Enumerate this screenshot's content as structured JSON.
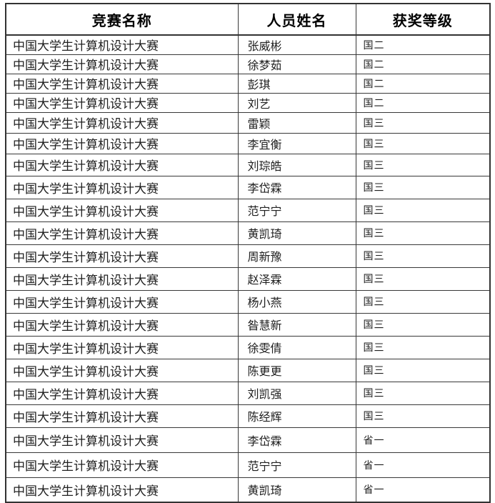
{
  "table": {
    "headers": [
      "竞赛名称",
      "人员姓名",
      "获奖等级"
    ],
    "rows": [
      {
        "competition": "中国大学生计算机设计大赛",
        "name": "张威彬",
        "award": "国二"
      },
      {
        "competition": "中国大学生计算机设计大赛",
        "name": "徐梦茹",
        "award": "国二"
      },
      {
        "competition": "中国大学生计算机设计大赛",
        "name": "彭琪",
        "award": "国二"
      },
      {
        "competition": "中国大学生计算机设计大赛",
        "name": "刘艺",
        "award": "国二"
      },
      {
        "competition": "中国大学生计算机设计大赛",
        "name": "雷颖",
        "award": "国三"
      },
      {
        "competition": "中国大学生计算机设计大赛",
        "name": "李宜衡",
        "award": "国三"
      },
      {
        "competition": "中国大学生计算机设计大赛",
        "name": "刘琮皓",
        "award": "国三"
      },
      {
        "competition": "中国大学生计算机设计大赛",
        "name": "李岱霖",
        "award": "国三"
      },
      {
        "competition": "中国大学生计算机设计大赛",
        "name": "范宁宁",
        "award": "国三"
      },
      {
        "competition": "中国大学生计算机设计大赛",
        "name": "黄凯琦",
        "award": "国三"
      },
      {
        "competition": "中国大学生计算机设计大赛",
        "name": "周新豫",
        "award": "国三"
      },
      {
        "competition": "中国大学生计算机设计大赛",
        "name": "赵泽霖",
        "award": "国三"
      },
      {
        "competition": "中国大学生计算机设计大赛",
        "name": "杨小燕",
        "award": "国三"
      },
      {
        "competition": "中国大学生计算机设计大赛",
        "name": "昝慧新",
        "award": "国三"
      },
      {
        "competition": "中国大学生计算机设计大赛",
        "name": "徐雯倩",
        "award": "国三"
      },
      {
        "competition": "中国大学生计算机设计大赛",
        "name": "陈更更",
        "award": "国三"
      },
      {
        "competition": "中国大学生计算机设计大赛",
        "name": "刘凯强",
        "award": "国三"
      },
      {
        "competition": "中国大学生计算机设计大赛",
        "name": "陈经辉",
        "award": "国三"
      },
      {
        "competition": "中国大学生计算机设计大赛",
        "name": "李岱霖",
        "award": "省一"
      },
      {
        "competition": "中国大学生计算机设计大赛",
        "name": "范宁宁",
        "award": "省一"
      },
      {
        "competition": "中国大学生计算机设计大赛",
        "name": "黄凯琦",
        "award": "省一"
      }
    ]
  },
  "colors": {
    "border": "#383838",
    "text": "#1f1f1f",
    "header_text": "#000000",
    "background": "#ffffff"
  }
}
